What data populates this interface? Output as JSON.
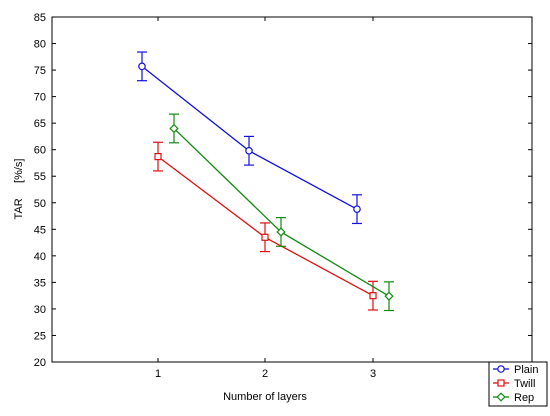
{
  "chart_data": {
    "type": "line",
    "xlabel": "Number of layers",
    "ylabel": "TAR     [%/s]",
    "categories": [
      "1",
      "2",
      "3"
    ],
    "x_ticks": [
      "1",
      "2",
      "3"
    ],
    "ylim": [
      20,
      85
    ],
    "y_ticks": [
      "20",
      "25",
      "30",
      "35",
      "40",
      "45",
      "50",
      "55",
      "60",
      "65",
      "70",
      "75",
      "80",
      "85"
    ],
    "grid": false,
    "legend_position": "bottom-right",
    "error_bars": true,
    "series": [
      {
        "name": "Plain",
        "marker": "circle",
        "color": "#1010e0",
        "values": [
          75.7,
          59.8,
          48.8
        ],
        "err_low": [
          73.0,
          57.1,
          46.1
        ],
        "err_high": [
          78.4,
          62.5,
          51.5
        ]
      },
      {
        "name": "Twill",
        "marker": "square",
        "color": "#e01010",
        "values": [
          58.7,
          43.5,
          32.5
        ],
        "err_low": [
          56.0,
          40.8,
          29.8
        ],
        "err_high": [
          61.4,
          46.2,
          35.2
        ]
      },
      {
        "name": "Rep",
        "marker": "diamond",
        "color": "#108a10",
        "values": [
          64.0,
          44.5,
          32.4
        ],
        "err_low": [
          61.3,
          41.8,
          29.7
        ],
        "err_high": [
          66.7,
          47.2,
          35.1
        ]
      }
    ]
  }
}
